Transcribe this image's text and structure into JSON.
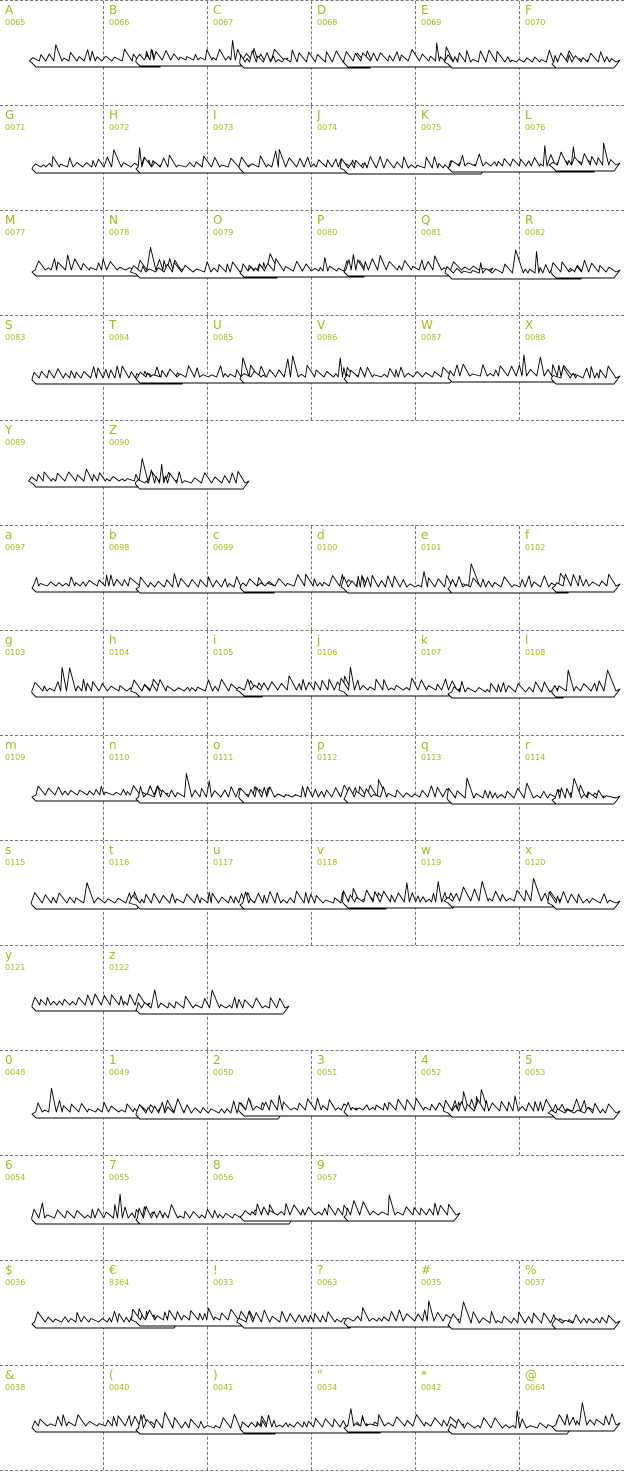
{
  "colors": {
    "label": "#a7b81c",
    "grid": "#777777",
    "ink": "#000000"
  },
  "rows": [
    {
      "cells": [
        {
          "char": "A",
          "code": "0065"
        },
        {
          "char": "B",
          "code": "0066"
        },
        {
          "char": "C",
          "code": "0067"
        },
        {
          "char": "D",
          "code": "0068"
        },
        {
          "char": "E",
          "code": "0069"
        },
        {
          "char": "F",
          "code": "0070"
        }
      ],
      "ships": 6
    },
    {
      "cells": [
        {
          "char": "G",
          "code": "0071"
        },
        {
          "char": "H",
          "code": "0072"
        },
        {
          "char": "I",
          "code": "0073"
        },
        {
          "char": "J",
          "code": "0074"
        },
        {
          "char": "K",
          "code": "0075"
        },
        {
          "char": "L",
          "code": "0076"
        }
      ],
      "ships": 6
    },
    {
      "cells": [
        {
          "char": "M",
          "code": "0077"
        },
        {
          "char": "N",
          "code": "0078"
        },
        {
          "char": "O",
          "code": "0079"
        },
        {
          "char": "P",
          "code": "0080"
        },
        {
          "char": "Q",
          "code": "0081"
        },
        {
          "char": "R",
          "code": "0082"
        }
      ],
      "ships": 6
    },
    {
      "cells": [
        {
          "char": "S",
          "code": "0083"
        },
        {
          "char": "T",
          "code": "0084"
        },
        {
          "char": "U",
          "code": "0085"
        },
        {
          "char": "V",
          "code": "0086"
        },
        {
          "char": "W",
          "code": "0087"
        },
        {
          "char": "X",
          "code": "0088"
        }
      ],
      "ships": 6
    },
    {
      "cells": [
        {
          "char": "Y",
          "code": "0089"
        },
        {
          "char": "Z",
          "code": "0090"
        }
      ],
      "ships": 2
    },
    {
      "cells": [
        {
          "char": "a",
          "code": "0097"
        },
        {
          "char": "b",
          "code": "0098"
        },
        {
          "char": "c",
          "code": "0099"
        },
        {
          "char": "d",
          "code": "0100"
        },
        {
          "char": "e",
          "code": "0101"
        },
        {
          "char": "f",
          "code": "0102"
        }
      ],
      "ships": 6
    },
    {
      "cells": [
        {
          "char": "g",
          "code": "0103"
        },
        {
          "char": "h",
          "code": "0104"
        },
        {
          "char": "i",
          "code": "0105"
        },
        {
          "char": "j",
          "code": "0106"
        },
        {
          "char": "k",
          "code": "0107"
        },
        {
          "char": "l",
          "code": "0108"
        }
      ],
      "ships": 6
    },
    {
      "cells": [
        {
          "char": "m",
          "code": "0109"
        },
        {
          "char": "n",
          "code": "0110"
        },
        {
          "char": "o",
          "code": "0111"
        },
        {
          "char": "p",
          "code": "0112"
        },
        {
          "char": "q",
          "code": "0113"
        },
        {
          "char": "r",
          "code": "0114"
        }
      ],
      "ships": 6
    },
    {
      "cells": [
        {
          "char": "s",
          "code": "0115"
        },
        {
          "char": "t",
          "code": "0116"
        },
        {
          "char": "u",
          "code": "0117"
        },
        {
          "char": "v",
          "code": "0118"
        },
        {
          "char": "w",
          "code": "0119"
        },
        {
          "char": "x",
          "code": "0120"
        }
      ],
      "ships": 6
    },
    {
      "cells": [
        {
          "char": "y",
          "code": "0121"
        },
        {
          "char": "z",
          "code": "0122"
        }
      ],
      "ships": 2
    },
    {
      "cells": [
        {
          "char": "0",
          "code": "0048"
        },
        {
          "char": "1",
          "code": "0049"
        },
        {
          "char": "2",
          "code": "0050"
        },
        {
          "char": "3",
          "code": "0051"
        },
        {
          "char": "4",
          "code": "0052"
        },
        {
          "char": "5",
          "code": "0053"
        }
      ],
      "ships": 6
    },
    {
      "cells": [
        {
          "char": "6",
          "code": "0054"
        },
        {
          "char": "7",
          "code": "0055"
        },
        {
          "char": "8",
          "code": "0056"
        },
        {
          "char": "9",
          "code": "0057"
        }
      ],
      "ships": 4
    },
    {
      "cells": [
        {
          "char": "$",
          "code": "0036"
        },
        {
          "char": "€",
          "code": "8364"
        },
        {
          "char": "!",
          "code": "0033"
        },
        {
          "char": "?",
          "code": "0063"
        },
        {
          "char": "#",
          "code": "0035"
        },
        {
          "char": "%",
          "code": "0037"
        }
      ],
      "ships": 6
    },
    {
      "cells": [
        {
          "char": "&",
          "code": "0038"
        },
        {
          "char": "(",
          "code": "0040"
        },
        {
          "char": ")",
          "code": "0041"
        },
        {
          "char": "\"",
          "code": "0034"
        },
        {
          "char": "*",
          "code": "0042"
        },
        {
          "char": "@",
          "code": "0064"
        }
      ],
      "ships": 6
    }
  ]
}
